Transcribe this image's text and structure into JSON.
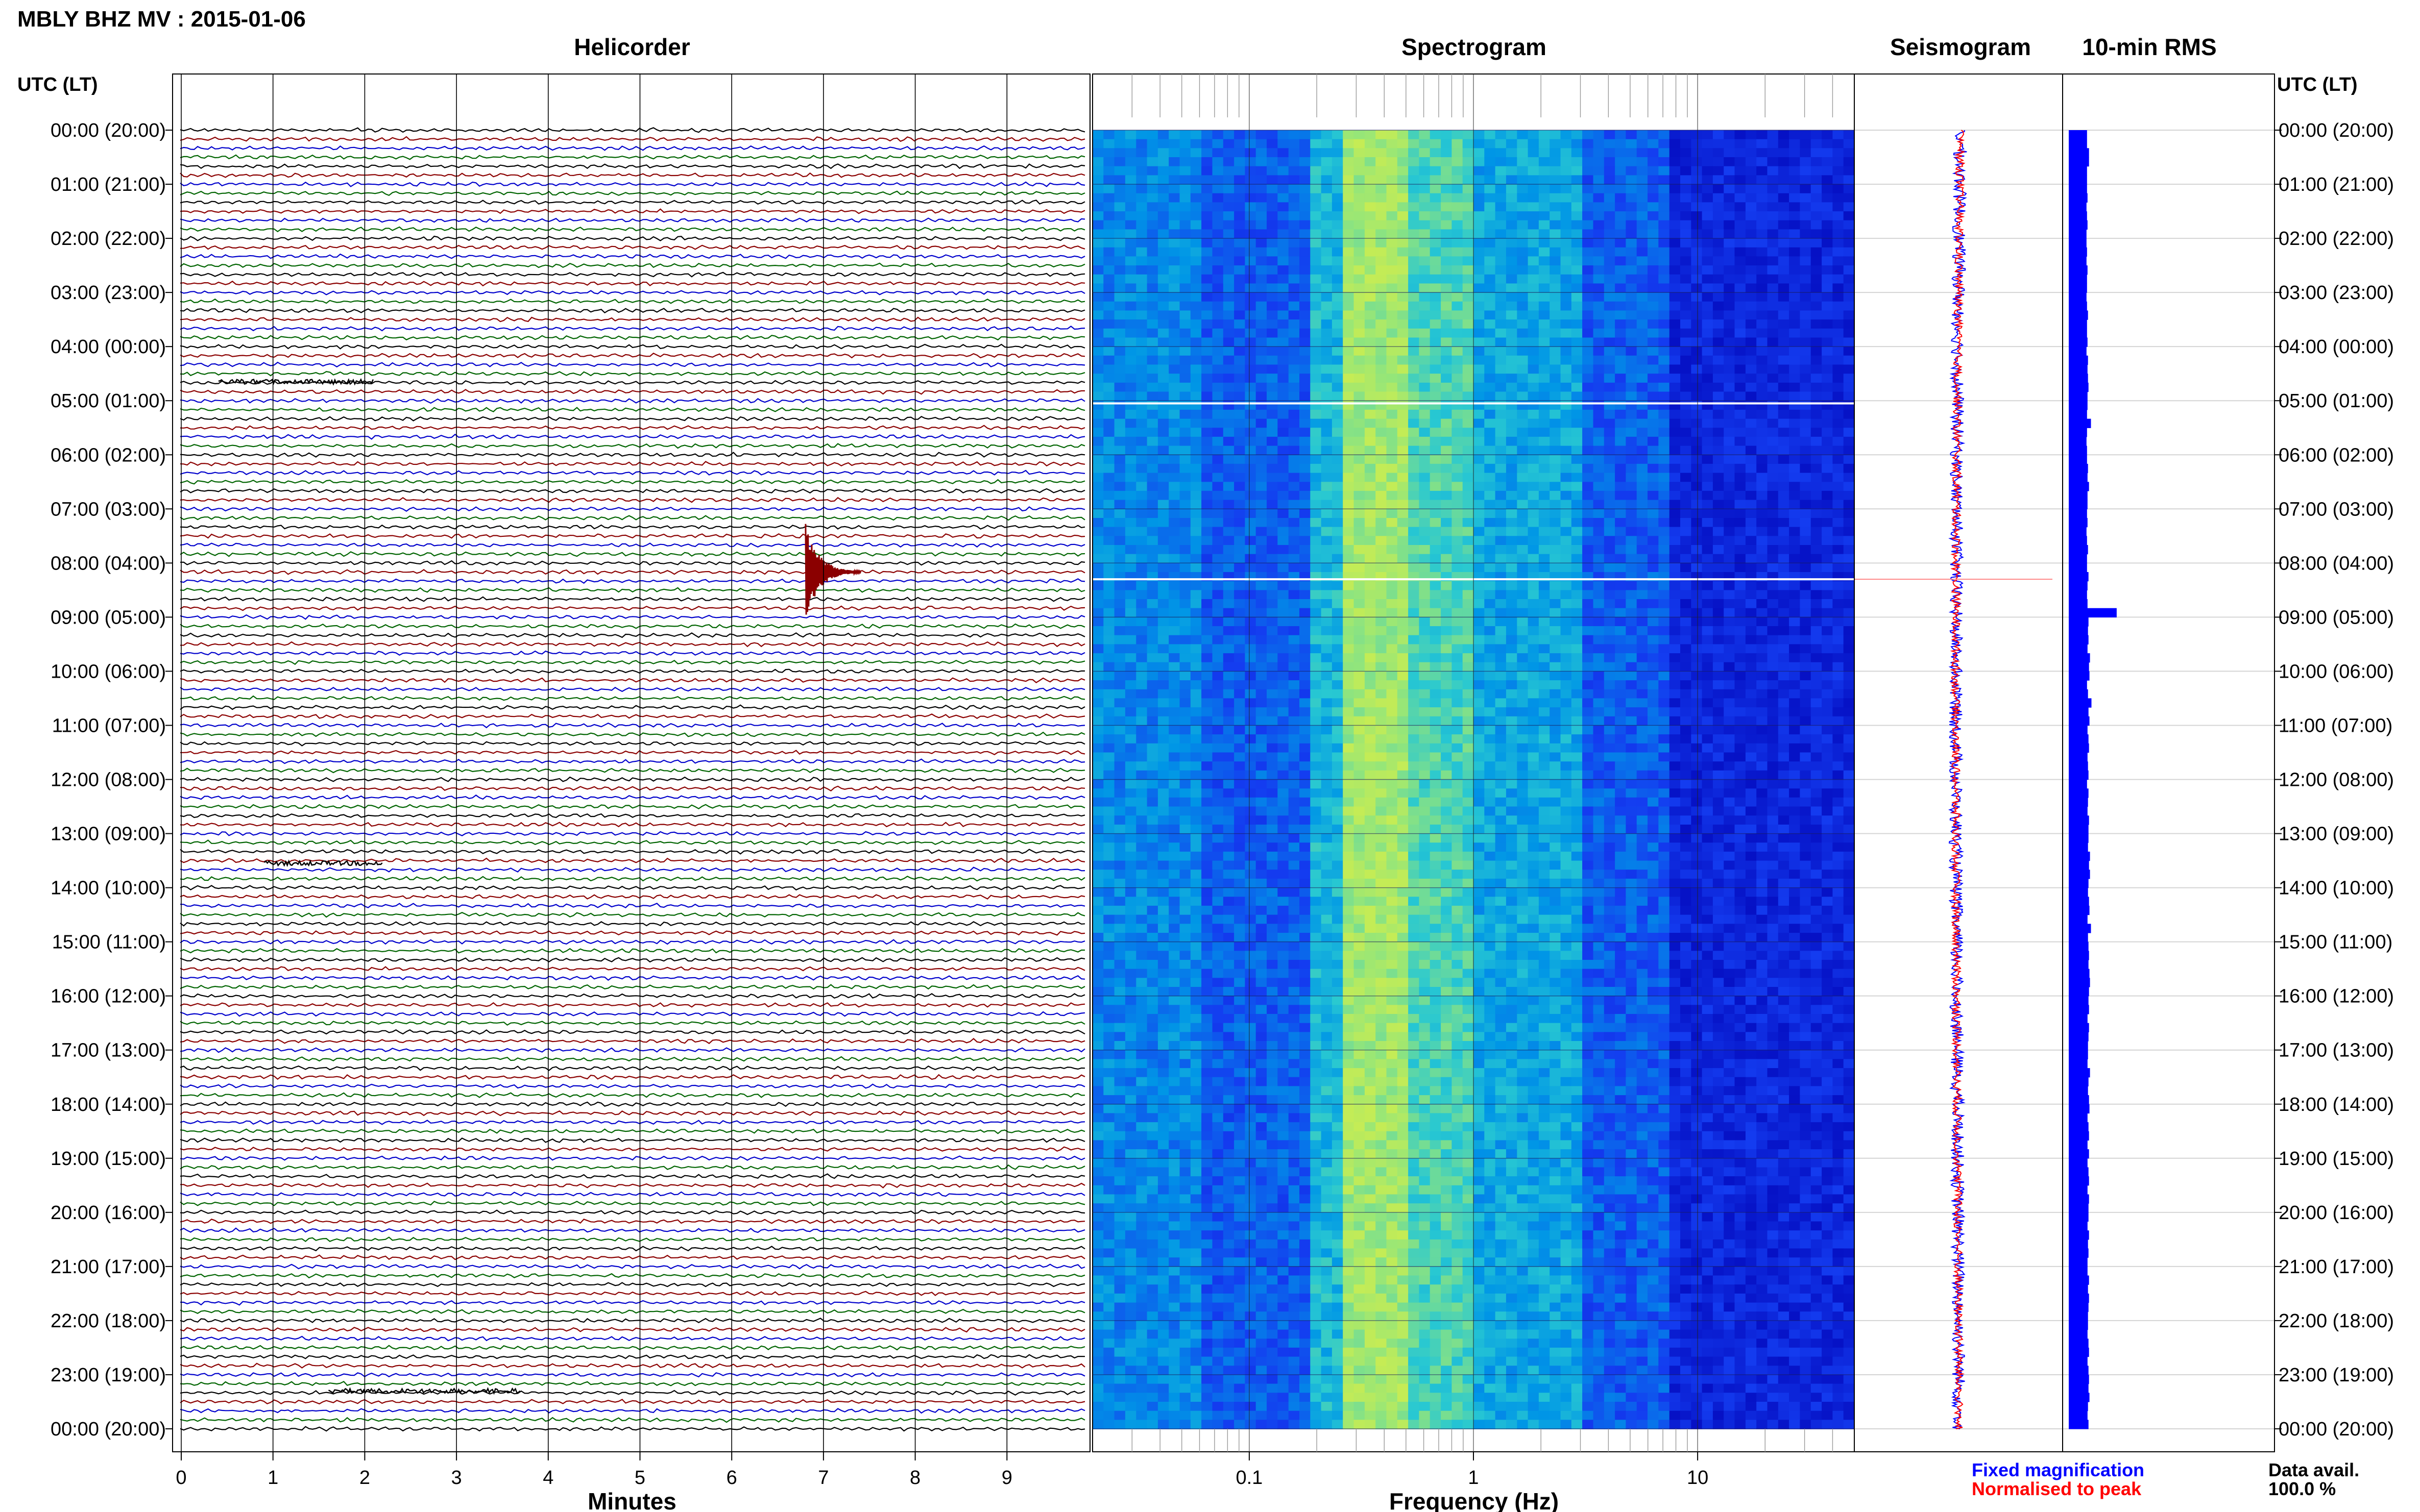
{
  "page": {
    "station_title": "MBLY BHZ MV : 2015-01-06",
    "utc_label_left": "UTC (LT)",
    "utc_label_right": "UTC (LT)"
  },
  "panels": {
    "helicorder": "Helicorder",
    "spectrogram": "Spectrogram",
    "seismogram": "Seismogram",
    "rms": "10-min RMS"
  },
  "axes": {
    "helicorder_xlabel": "Minutes",
    "spectrogram_xlabel": "Frequency (Hz)",
    "minute_ticks": [
      "0",
      "1",
      "2",
      "3",
      "4",
      "5",
      "6",
      "7",
      "8",
      "9"
    ],
    "freq_ticks": [
      "0.1",
      "1",
      "10"
    ],
    "freq_range": [
      0.02,
      50
    ]
  },
  "legend": {
    "fixed": "Fixed magnification",
    "normalised": "Normalised to peak",
    "fixed_color": "#0000ff",
    "normalised_color": "#ff0000"
  },
  "availability": {
    "label": "Data avail.",
    "value": "100.0 %"
  },
  "hour_labels": [
    "00:00 (20:00)",
    "01:00 (21:00)",
    "02:00 (22:00)",
    "03:00 (23:00)",
    "04:00 (00:00)",
    "05:00 (01:00)",
    "06:00 (02:00)",
    "07:00 (03:00)",
    "08:00 (04:00)",
    "09:00 (05:00)",
    "10:00 (06:00)",
    "11:00 (07:00)",
    "12:00 (08:00)",
    "13:00 (09:00)",
    "14:00 (10:00)",
    "15:00 (11:00)",
    "16:00 (12:00)",
    "17:00 (13:00)",
    "18:00 (14:00)",
    "19:00 (15:00)",
    "20:00 (16:00)",
    "21:00 (17:00)",
    "22:00 (18:00)",
    "23:00 (19:00)",
    "00:00 (20:00)"
  ],
  "colors": {
    "trace_cycle": [
      "#000000",
      "#8b0000",
      "#0000cc",
      "#006400"
    ],
    "event_trace": "#8b0000",
    "rms_bar": "#0000ff"
  },
  "chart_data": [
    {
      "type": "line",
      "name": "helicorder",
      "title": "Helicorder",
      "xlabel": "Minutes",
      "xlim": [
        0,
        10
      ],
      "lines_per_hour": 6,
      "event": {
        "hour": 8,
        "minute": 6.9
      }
    },
    {
      "type": "heatmap",
      "name": "spectrogram",
      "title": "Spectrogram",
      "xlabel": "Frequency (Hz)",
      "xscale": "log",
      "xlim": [
        0.02,
        50
      ]
    },
    {
      "type": "bar",
      "name": "rms",
      "title": "10-min RMS",
      "rms_values": [
        0.37,
        0.37,
        0.41,
        0.41,
        0.37,
        0.37,
        0.37,
        0.38,
        0.36,
        0.37,
        0.38,
        0.36,
        0.36,
        0.37,
        0.36,
        0.38,
        0.37,
        0.37,
        0.36,
        0.37,
        0.39,
        0.37,
        0.37,
        0.38,
        0.36,
        0.39,
        0.38,
        0.39,
        0.4,
        0.38,
        0.38,
        0.37,
        0.45,
        0.37,
        0.36,
        0.37,
        0.37,
        0.39,
        0.38,
        0.41,
        0.38,
        0.38,
        0.37,
        0.38,
        0.36,
        0.37,
        0.39,
        0.37,
        0.37,
        0.4,
        0.38,
        0.37,
        0.38,
        0.97,
        0.4,
        0.39,
        0.4,
        0.38,
        0.43,
        0.41,
        0.42,
        0.37,
        0.39,
        0.46,
        0.4,
        0.42,
        0.38,
        0.4,
        0.41,
        0.38,
        0.39,
        0.4,
        0.37,
        0.4,
        0.39,
        0.38,
        0.41,
        0.4,
        0.4,
        0.39,
        0.43,
        0.41,
        0.43,
        0.4,
        0.39,
        0.41,
        0.42,
        0.38,
        0.45,
        0.39,
        0.4,
        0.41,
        0.4,
        0.42,
        0.43,
        0.41,
        0.4,
        0.41,
        0.38,
        0.41,
        0.4,
        0.39,
        0.39,
        0.38,
        0.43,
        0.4,
        0.39,
        0.41,
        0.42,
        0.38,
        0.4,
        0.41,
        0.38,
        0.41,
        0.38,
        0.4,
        0.41,
        0.38,
        0.41,
        0.4,
        0.4,
        0.38,
        0.41,
        0.39,
        0.4,
        0.38,
        0.38,
        0.41,
        0.39,
        0.41,
        0.4,
        0.39,
        0.39,
        0.38,
        0.4,
        0.41,
        0.38,
        0.4,
        0.41,
        0.4,
        0.42,
        0.39,
        0.38,
        0.4
      ]
    }
  ]
}
